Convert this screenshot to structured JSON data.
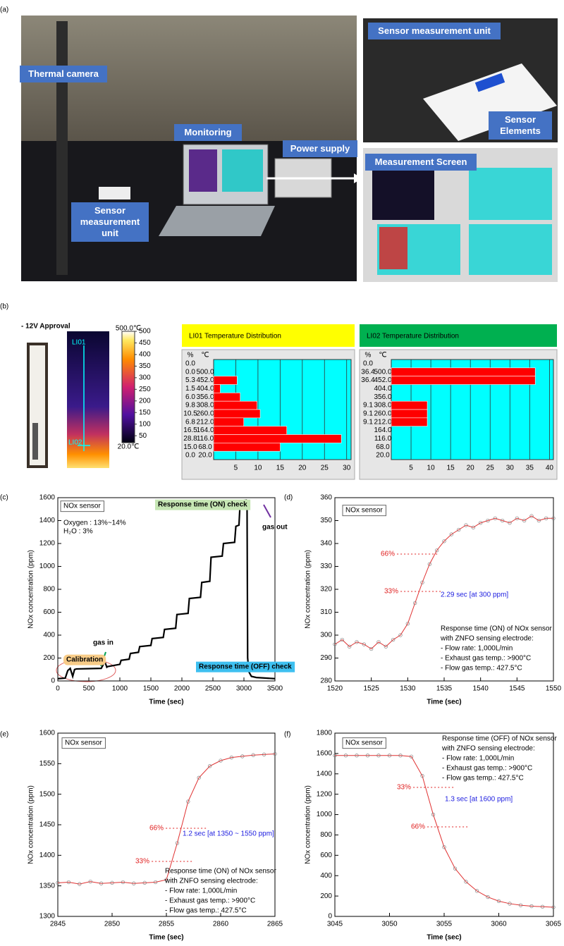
{
  "panel_labels": [
    "(a)",
    "(b)",
    "(c)",
    "(d)",
    "(e)",
    "(f)"
  ],
  "photo_labels": {
    "thermal_camera": "Thermal camera",
    "monitoring": "Monitoring",
    "power_supply": "Power supply",
    "sensor_unit_left": "Sensor measurement unit",
    "sensor_unit_right": "Sensor measurement unit",
    "sensor_elements": "Sensor Elements",
    "measurement_screen": "Measurement Screen"
  },
  "thermal_image": {
    "title": "- 12V Approval",
    "line_labels": [
      "LI01",
      "LI02"
    ]
  },
  "colorbar": {
    "top_label": "500.0℃",
    "bottom_label": "20.0℃",
    "lim": [
      20,
      500
    ],
    "ticks": [
      500,
      450,
      400,
      350,
      300,
      250,
      200,
      150,
      100,
      50
    ]
  },
  "chart_data": [
    {
      "type": "hbar",
      "title": "LI01 Temperature Distribution",
      "header_color": "#ffff00",
      "value_header": "%",
      "category_header": "℃",
      "categories": [
        null,
        "500.0",
        "452.0",
        "404.0",
        "356.0",
        "308.0",
        "260.0",
        "212.0",
        "164.0",
        "116.0",
        "68.0",
        "20.0"
      ],
      "values": [
        0,
        0,
        5.3,
        1.5,
        6,
        9.8,
        10.5,
        6.8,
        16.5,
        28.8,
        15,
        0
      ],
      "value_labels": [
        "0.0",
        "0.0",
        "5.3",
        "1.5",
        "6.0",
        "9.8",
        "10.5",
        "6.8",
        "16.5",
        "28.8",
        "15.0",
        "0.0"
      ],
      "color": "#ff0000",
      "plot_color": "#00ffff",
      "xlim": [
        0,
        31
      ],
      "xticks": [
        5,
        10,
        15,
        20,
        25,
        30
      ]
    },
    {
      "type": "hbar",
      "title": "LI02 Temperature Distribution",
      "header_color": "#00b050",
      "value_header": "%",
      "category_header": "℃",
      "categories": [
        null,
        "500.0",
        "452.0",
        "404.0",
        "356.0",
        "308.0",
        "260.0",
        "212.0",
        "164.0",
        "116.0",
        "68.0",
        "20.0"
      ],
      "values": [
        0,
        36.4,
        36.4,
        null,
        null,
        9.1,
        9.1,
        9.1,
        null,
        null,
        null,
        null
      ],
      "value_labels": [
        "0.0",
        "36.4",
        "36.4",
        null,
        null,
        "9.1",
        "9.1",
        "9.1",
        null,
        null,
        null,
        null
      ],
      "color": "#ff0000",
      "plot_color": "#00ffff",
      "xlim": [
        0,
        41
      ],
      "xticks": [
        5,
        10,
        15,
        20,
        25,
        30,
        35,
        40
      ]
    },
    {
      "type": "line",
      "xlabel": "Time (sec)",
      "ylabel": "NOx concentration (ppm)",
      "color": "#000000",
      "xlim": [
        0,
        3500
      ],
      "ylim": [
        0,
        1600
      ],
      "xticks": [
        0,
        500,
        1000,
        1500,
        2000,
        2500,
        3000,
        3500
      ],
      "yticks": [
        0,
        200,
        400,
        600,
        800,
        1000,
        1200,
        1400,
        1600
      ],
      "x": [
        0,
        120,
        160,
        200,
        240,
        270,
        300,
        700,
        740,
        760,
        790,
        800,
        1000,
        1020,
        1150,
        1170,
        1300,
        1320,
        1500,
        1520,
        1700,
        1720,
        1900,
        1920,
        2100,
        2120,
        2300,
        2320,
        2450,
        2470,
        2650,
        2670,
        2850,
        2870,
        2920,
        2940,
        3040,
        3050,
        3060,
        3080,
        3120,
        3200,
        3500
      ],
      "values": [
        20,
        25,
        90,
        110,
        40,
        100,
        105,
        110,
        150,
        165,
        120,
        125,
        145,
        180,
        190,
        240,
        250,
        300,
        310,
        370,
        380,
        450,
        460,
        580,
        590,
        720,
        730,
        860,
        870,
        1080,
        1090,
        1200,
        1210,
        1350,
        1360,
        1570,
        1580,
        1575,
        200,
        80,
        40,
        30,
        20
      ],
      "annotations": [
        "NOx sensor",
        "Oxygen : 13%~14%",
        "H₂O : 3%",
        "Response time (ON) check",
        "gas out",
        "gas in",
        "Calibration",
        "Response time (OFF) check"
      ]
    },
    {
      "type": "scatter",
      "xlabel": "Time (sec)",
      "ylabel": "NOx concentration (ppm)",
      "color": "#808080",
      "fit_color": "#e03030",
      "xlim": [
        1520,
        1550
      ],
      "ylim": [
        280,
        360
      ],
      "xticks": [
        1520,
        1525,
        1530,
        1535,
        1540,
        1545,
        1550
      ],
      "yticks": [
        280,
        290,
        300,
        310,
        320,
        330,
        340,
        350,
        360
      ],
      "x": [
        1520,
        1521,
        1522,
        1523,
        1524,
        1525,
        1526,
        1527,
        1528,
        1529,
        1530,
        1531,
        1532,
        1533,
        1534,
        1535,
        1536,
        1537,
        1538,
        1539,
        1540,
        1541,
        1542,
        1543,
        1544,
        1545,
        1546,
        1547,
        1548,
        1549,
        1550
      ],
      "values": [
        296,
        298,
        295,
        297,
        296,
        294,
        297,
        295,
        298,
        300,
        305,
        314,
        323,
        331,
        337,
        341,
        344,
        346,
        348,
        347,
        349,
        350,
        351,
        350,
        349,
        351,
        350,
        352,
        350,
        351,
        351
      ],
      "annotations": [
        "NOx sensor",
        "66%",
        "33%",
        "2.29 sec [at 300 ppm]",
        "Response time (ON) of NOx sensor",
        "with ZNFO sensing electrode:",
        "- Flow rate: 1,000L/min",
        "- Exhaust gas temp.: >900°C",
        "- Flow gas temp.: 427.5°C"
      ]
    },
    {
      "type": "scatter",
      "xlabel": "Time (sec)",
      "ylabel": "NOx concentration (ppm)",
      "color": "#808080",
      "fit_color": "#e03030",
      "xlim": [
        2845,
        2865
      ],
      "ylim": [
        1300,
        1600
      ],
      "xticks": [
        2845,
        2850,
        2855,
        2860,
        2865
      ],
      "yticks": [
        1300,
        1350,
        1400,
        1450,
        1500,
        1550,
        1600
      ],
      "x": [
        2845,
        2846,
        2847,
        2848,
        2849,
        2850,
        2851,
        2852,
        2853,
        2854,
        2855,
        2856,
        2857,
        2858,
        2859,
        2860,
        2861,
        2862,
        2863,
        2864,
        2865
      ],
      "values": [
        1355,
        1356,
        1353,
        1357,
        1354,
        1355,
        1356,
        1354,
        1355,
        1356,
        1360,
        1420,
        1488,
        1527,
        1546,
        1555,
        1560,
        1562,
        1564,
        1565,
        1566
      ],
      "annotations": [
        "NOx sensor",
        "66%",
        "33%",
        "1.2 sec [at 1350 ~ 1550 ppm]",
        "Response time (ON) of NOx sensor",
        "with ZNFO sensing electrode:",
        "- Flow rate: 1,000L/min",
        "- Exhaust gas temp.: >900°C",
        "- Flow gas temp.: 427.5°C"
      ]
    },
    {
      "type": "scatter",
      "xlabel": "Time (sec)",
      "ylabel": "NOx concentration (ppm)",
      "color": "#808080",
      "fit_color": "#e03030",
      "xlim": [
        3045,
        3065
      ],
      "ylim": [
        0,
        1800
      ],
      "xticks": [
        3045,
        3050,
        3055,
        3060,
        3065
      ],
      "yticks": [
        0,
        200,
        400,
        600,
        800,
        1000,
        1200,
        1400,
        1600,
        1800
      ],
      "x": [
        3045,
        3046,
        3047,
        3048,
        3049,
        3050,
        3051,
        3052,
        3053,
        3054,
        3055,
        3056,
        3057,
        3058,
        3059,
        3060,
        3061,
        3062,
        3063,
        3064,
        3065
      ],
      "values": [
        1580,
        1580,
        1580,
        1580,
        1580,
        1580,
        1580,
        1570,
        1380,
        1000,
        680,
        470,
        340,
        250,
        190,
        150,
        125,
        110,
        100,
        95,
        90
      ],
      "annotations": [
        "NOx sensor",
        "Response time (OFF) of NOx sensor",
        "with ZNFO sensing electrode:",
        "- Flow rate: 1,000L/min",
        "- Exhaust gas temp.: >900°C",
        "- Flow gas temp.: 427.5°C",
        "33%",
        "1.3 sec [at 1600 ppm]",
        "66%"
      ]
    }
  ]
}
